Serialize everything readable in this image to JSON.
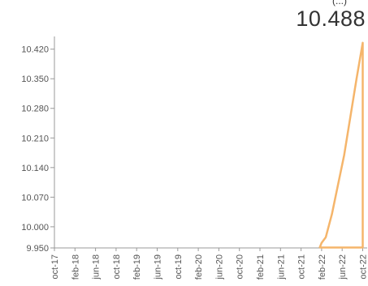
{
  "header": {
    "value_label": "10.488",
    "partial_top": "(...)"
  },
  "chart_data": {
    "type": "line",
    "title": "",
    "xlabel": "",
    "ylabel": "",
    "ylim": [
      9.95,
      10.45
    ],
    "yticks": [
      "9.950",
      "10.000",
      "10.070",
      "10.140",
      "10.210",
      "10.280",
      "10.350",
      "10.420"
    ],
    "ytick_values": [
      9.95,
      10.0,
      10.07,
      10.14,
      10.21,
      10.28,
      10.35,
      10.42
    ],
    "xticks": [
      "oct-17",
      "feb-18",
      "jun-18",
      "oct-18",
      "feb-19",
      "jun-19",
      "oct-19",
      "feb-20",
      "jun-20",
      "oct-20",
      "feb-21",
      "jun-21",
      "oct-21",
      "feb-22",
      "jun-22",
      "oct-22"
    ],
    "series": [
      {
        "color": "#F5B56B",
        "points": [
          {
            "x": 12.9,
            "y": 9.95
          },
          {
            "x": 13.0,
            "y": 9.962
          },
          {
            "x": 13.2,
            "y": 9.975
          },
          {
            "x": 13.5,
            "y": 10.03
          },
          {
            "x": 14.1,
            "y": 10.17
          },
          {
            "x": 14.7,
            "y": 10.35
          },
          {
            "x": 15.0,
            "y": 10.435
          },
          {
            "x": 15.0,
            "y": 9.951
          },
          {
            "x": 12.9,
            "y": 9.951
          }
        ]
      }
    ],
    "axis_color": "#999999",
    "grid": false
  }
}
